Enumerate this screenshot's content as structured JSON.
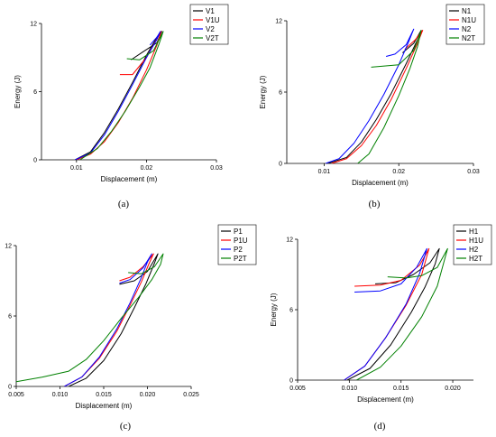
{
  "chart_data": [
    {
      "type": "line",
      "panel_label": "(a)",
      "xlabel": "Displacement (m)",
      "ylabel": "Energy (J)",
      "xlim": [
        0.005,
        0.03
      ],
      "ylim": [
        0,
        12
      ],
      "xticks": [
        0.01,
        0.02,
        0.03
      ],
      "xtick_labels": [
        "0.01",
        "0.02",
        "0.03"
      ],
      "yticks": [
        0,
        6,
        12
      ],
      "ytick_labels": [
        "0",
        "6",
        "12"
      ],
      "legend_position": "top-right",
      "series": [
        {
          "name": "V1",
          "color": "#000000",
          "x": [
            0.0098,
            0.012,
            0.014,
            0.016,
            0.018,
            0.02,
            0.0215,
            0.0222,
            0.0215,
            0.0195,
            0.0178
          ],
          "y": [
            0,
            0.7,
            2.4,
            4.5,
            6.8,
            9.2,
            10.8,
            11.3,
            10.3,
            9.5,
            8.8
          ]
        },
        {
          "name": "V1U",
          "color": "#ff0000",
          "x": [
            0.01,
            0.012,
            0.014,
            0.016,
            0.018,
            0.02,
            0.0215,
            0.0221,
            0.02,
            0.018,
            0.0162
          ],
          "y": [
            0,
            0.5,
            1.6,
            3.3,
            5.4,
            7.9,
            10.1,
            11.3,
            9.0,
            7.5,
            7.5
          ]
        },
        {
          "name": "V2",
          "color": "#0000ff",
          "x": [
            0.0098,
            0.012,
            0.014,
            0.016,
            0.018,
            0.02,
            0.0215,
            0.022,
            0.0215,
            0.0205
          ],
          "y": [
            0,
            0.6,
            2.2,
            4.3,
            6.6,
            9.0,
            10.6,
            11.3,
            10.8,
            10.1
          ]
        },
        {
          "name": "V2T",
          "color": "#008000",
          "x": [
            0.0105,
            0.013,
            0.015,
            0.017,
            0.019,
            0.0205,
            0.0218,
            0.0224,
            0.021,
            0.019,
            0.0172
          ],
          "y": [
            0,
            1.0,
            2.5,
            4.3,
            6.4,
            8.1,
            10.2,
            11.3,
            9.6,
            8.8,
            8.9
          ]
        }
      ]
    },
    {
      "type": "line",
      "panel_label": "(b)",
      "xlabel": "Displacement (m)",
      "ylabel": "Energy (J)",
      "xlim": [
        0.005,
        0.03
      ],
      "ylim": [
        0,
        12
      ],
      "xticks": [
        0.01,
        0.02,
        0.03
      ],
      "xtick_labels": [
        "0.01",
        "0.02",
        "0.03"
      ],
      "yticks": [
        0,
        6,
        12
      ],
      "ytick_labels": [
        "0",
        "6",
        "12"
      ],
      "legend_position": "top-right",
      "series": [
        {
          "name": "N1",
          "color": "#000000",
          "x": [
            0.0105,
            0.013,
            0.015,
            0.017,
            0.019,
            0.021,
            0.0225,
            0.023,
            0.022,
            0.0205
          ],
          "y": [
            0,
            0.5,
            1.8,
            3.7,
            5.9,
            8.4,
            10.4,
            11.2,
            10.1,
            9.3
          ]
        },
        {
          "name": "N1U",
          "color": "#ff0000",
          "x": [
            0.011,
            0.013,
            0.015,
            0.017,
            0.019,
            0.021,
            0.0225,
            0.0232,
            0.0222,
            0.0208
          ],
          "y": [
            0,
            0.4,
            1.5,
            3.2,
            5.4,
            8.0,
            10.1,
            11.2,
            10.4,
            9.6
          ]
        },
        {
          "name": "N2",
          "color": "#0000ff",
          "x": [
            0.0102,
            0.012,
            0.014,
            0.016,
            0.018,
            0.02,
            0.0213,
            0.022,
            0.021,
            0.0195,
            0.0183
          ],
          "y": [
            0,
            0.4,
            1.7,
            3.6,
            5.8,
            8.3,
            10.2,
            11.3,
            10.0,
            9.2,
            9.0
          ]
        },
        {
          "name": "N2T",
          "color": "#008000",
          "x": [
            0.0145,
            0.016,
            0.018,
            0.02,
            0.0215,
            0.0225,
            0.023,
            0.022,
            0.02,
            0.0163
          ],
          "y": [
            0,
            0.8,
            3.0,
            5.7,
            8.0,
            9.8,
            11.2,
            9.5,
            8.3,
            8.1
          ]
        }
      ]
    },
    {
      "type": "line",
      "panel_label": "(c)",
      "xlabel": "Displacement (m)",
      "ylabel": "Energy (J)",
      "xlim": [
        0.005,
        0.025
      ],
      "ylim": [
        0,
        12
      ],
      "xticks": [
        0.005,
        0.01,
        0.015,
        0.02,
        0.025
      ],
      "xtick_labels": [
        "0.005",
        "0.010",
        "0.015",
        "0.020",
        "0.025"
      ],
      "yticks": [
        0,
        6,
        12
      ],
      "ytick_labels": [
        "0",
        "6",
        "12"
      ],
      "legend_position": "top-right",
      "series": [
        {
          "name": "P1",
          "color": "#000000",
          "x": [
            0.011,
            0.013,
            0.015,
            0.017,
            0.0185,
            0.0198,
            0.0208,
            0.0212,
            0.02,
            0.0185,
            0.0168
          ],
          "y": [
            0,
            0.7,
            2.2,
            4.5,
            6.7,
            8.7,
            10.5,
            11.3,
            9.8,
            9.0,
            8.7
          ]
        },
        {
          "name": "P1U",
          "color": "#ff0000",
          "x": [
            0.0105,
            0.0125,
            0.0145,
            0.0165,
            0.018,
            0.0193,
            0.0202,
            0.0207,
            0.0195,
            0.018,
            0.0168
          ],
          "y": [
            0,
            0.8,
            2.4,
            4.7,
            6.9,
            8.9,
            10.5,
            11.3,
            10.2,
            9.3,
            9.0
          ]
        },
        {
          "name": "P2",
          "color": "#0000ff",
          "x": [
            0.0105,
            0.0125,
            0.0145,
            0.0165,
            0.018,
            0.0192,
            0.02,
            0.0205,
            0.0195,
            0.018,
            0.0168
          ],
          "y": [
            0,
            0.8,
            2.5,
            4.9,
            7.1,
            9.1,
            10.6,
            11.3,
            10.1,
            9.1,
            8.8
          ]
        },
        {
          "name": "P2T",
          "color": "#008000",
          "x": [
            0.005,
            0.008,
            0.011,
            0.013,
            0.015,
            0.017,
            0.019,
            0.0205,
            0.0215,
            0.0218,
            0.0208,
            0.0193,
            0.0178
          ],
          "y": [
            0.4,
            0.8,
            1.3,
            2.3,
            3.9,
            5.8,
            7.6,
            9.1,
            10.4,
            11.3,
            10.2,
            9.6,
            9.7
          ]
        }
      ]
    },
    {
      "type": "line",
      "panel_label": "(d)",
      "xlabel": "Displacement (m)",
      "ylabel": "Energy (J)",
      "xlim": [
        0.005,
        0.022
      ],
      "ylim": [
        0,
        12
      ],
      "xticks": [
        0.005,
        0.01,
        0.015,
        0.02
      ],
      "xtick_labels": [
        "0.005",
        "0.010",
        "0.015",
        "0.020"
      ],
      "yticks": [
        0,
        6,
        12
      ],
      "ytick_labels": [
        "0",
        "6",
        "12"
      ],
      "legend_position": "top-right",
      "series": [
        {
          "name": "H1",
          "color": "#000000",
          "x": [
            0.0098,
            0.012,
            0.014,
            0.016,
            0.0173,
            0.0183,
            0.0187,
            0.0178,
            0.0162,
            0.0145,
            0.0125
          ],
          "y": [
            0,
            1.0,
            3.0,
            5.8,
            7.9,
            9.9,
            11.2,
            10.0,
            9.0,
            8.3,
            8.2
          ]
        },
        {
          "name": "H1U",
          "color": "#ff0000",
          "x": [
            0.0095,
            0.0115,
            0.0135,
            0.0155,
            0.017,
            0.0177,
            0.0168,
            0.015,
            0.013,
            0.0105
          ],
          "y": [
            0,
            1.2,
            3.6,
            6.4,
            9.0,
            11.2,
            9.8,
            8.5,
            8.1,
            8.0
          ]
        },
        {
          "name": "H2",
          "color": "#0000ff",
          "x": [
            0.0095,
            0.0115,
            0.0135,
            0.0155,
            0.0168,
            0.0175,
            0.0165,
            0.015,
            0.013,
            0.0105
          ],
          "y": [
            0,
            1.2,
            3.6,
            6.5,
            9.1,
            11.2,
            9.6,
            8.2,
            7.6,
            7.5
          ]
        },
        {
          "name": "H2T",
          "color": "#008000",
          "x": [
            0.0107,
            0.013,
            0.015,
            0.017,
            0.0185,
            0.0195,
            0.0185,
            0.017,
            0.0155,
            0.0137
          ],
          "y": [
            0,
            1.1,
            2.9,
            5.4,
            8.0,
            11.2,
            9.6,
            8.9,
            8.7,
            8.8
          ]
        }
      ]
    }
  ]
}
